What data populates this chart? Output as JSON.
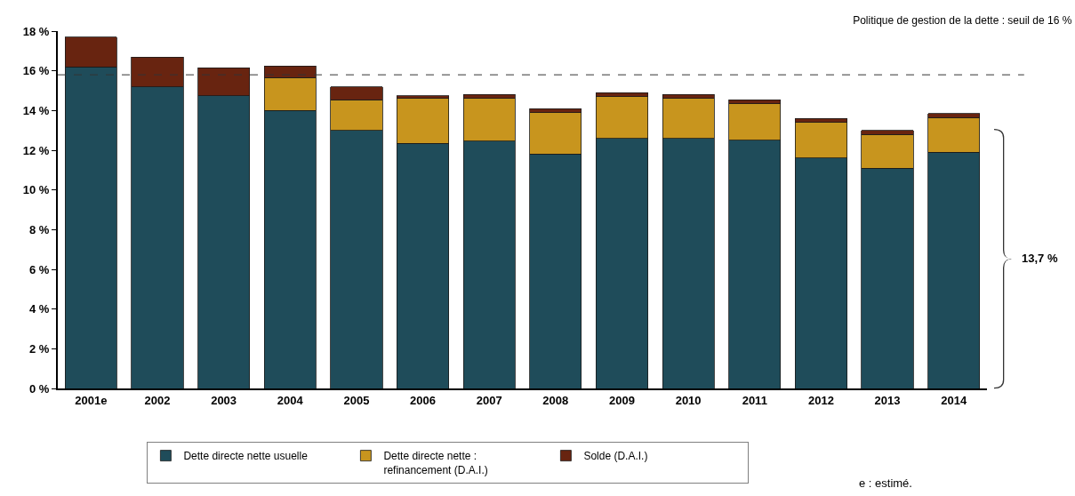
{
  "chart_data": {
    "type": "bar",
    "title": "Politique de gestion de la dette : seuil de 16 %",
    "categories": [
      "2001e",
      "2002",
      "2003",
      "2004",
      "2005",
      "2006",
      "2007",
      "2008",
      "2009",
      "2010",
      "2011",
      "2012",
      "2013",
      "2014"
    ],
    "series": [
      {
        "name": "Dette directe nette usuelle",
        "color": "#1f4c5a",
        "values": [
          16.2,
          15.2,
          14.75,
          14.0,
          13.0,
          12.35,
          12.45,
          11.8,
          12.6,
          12.6,
          12.5,
          11.6,
          11.1,
          11.9
        ]
      },
      {
        "name": "Dette directe nette : refinancement (D.A.I.)",
        "color": "#c8951e",
        "values": [
          0,
          0,
          0,
          1.65,
          1.55,
          2.25,
          2.15,
          2.1,
          2.1,
          2.0,
          1.85,
          1.8,
          1.7,
          1.75
        ]
      },
      {
        "name": "Solde (D.A.I.)",
        "color": "#682410",
        "values": [
          1.5,
          1.5,
          1.4,
          0.6,
          0.65,
          0.15,
          0.2,
          0.2,
          0.2,
          0.2,
          0.2,
          0.2,
          0.2,
          0.2
        ]
      }
    ],
    "stacked": true,
    "ylim": [
      0,
      18
    ],
    "yticks": [
      {
        "value": 0,
        "label": "0 %"
      },
      {
        "value": 2,
        "label": "2 %"
      },
      {
        "value": 4,
        "label": "4 %"
      },
      {
        "value": 6,
        "label": "6 %"
      },
      {
        "value": 8,
        "label": "8 %"
      },
      {
        "value": 10,
        "label": "10 %"
      },
      {
        "value": 12,
        "label": "12 %"
      },
      {
        "value": 14,
        "label": "14 %"
      },
      {
        "value": 16,
        "label": "16 %"
      },
      {
        "value": 18,
        "label": "18 %"
      }
    ],
    "ref_lines": [
      {
        "axis": "y",
        "value": 15.8,
        "color": "#333333",
        "line_style": "dashed"
      }
    ],
    "annotations": [
      "13,7 %",
      "e : estimé."
    ],
    "legend": "bottom"
  }
}
